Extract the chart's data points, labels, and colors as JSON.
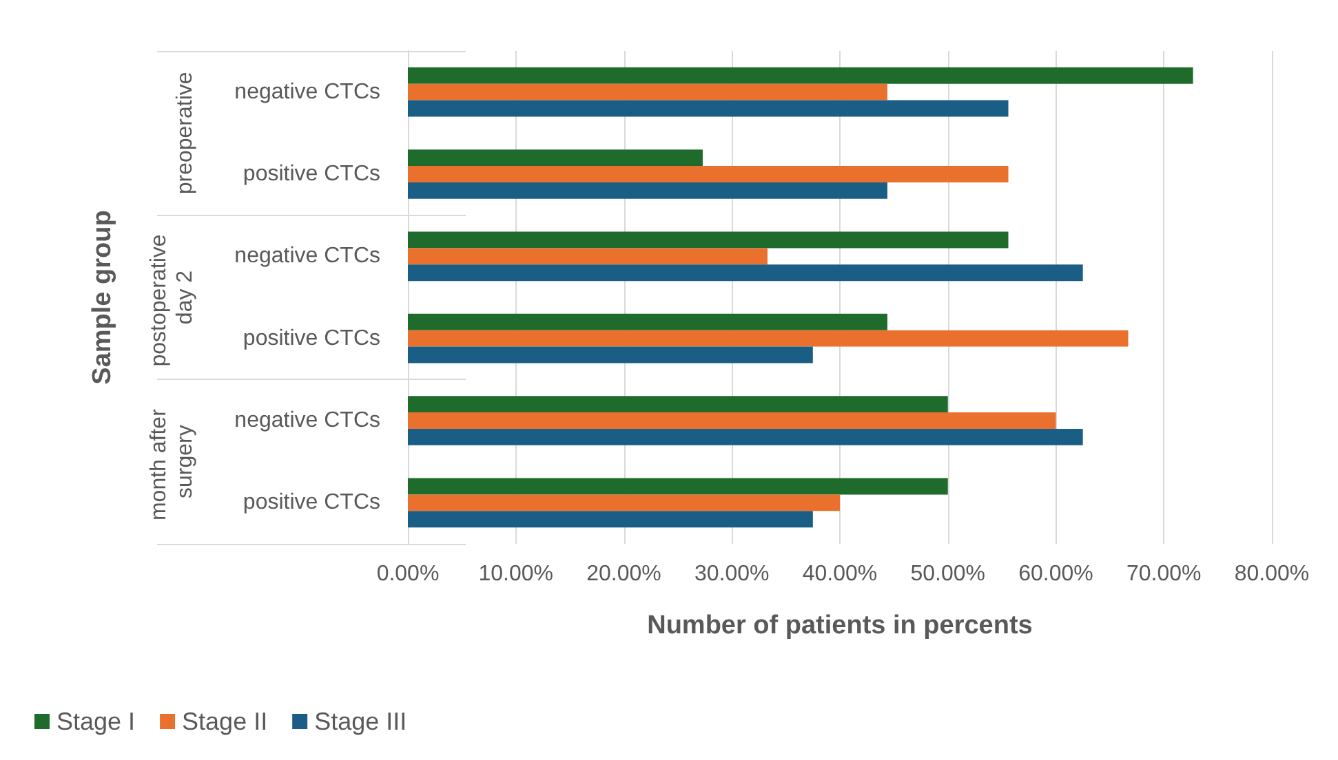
{
  "chart_data": {
    "type": "bar",
    "orientation": "horizontal",
    "xlabel": "Number of patients in percents",
    "ylabel": "Sample group",
    "categories": [
      "negative CTCs",
      "positive CTCs",
      "negative CTCs",
      "positive CTCs",
      "negative CTCs",
      "positive CTCs"
    ],
    "annotations": [
      "preoperative",
      "postoperative day 2",
      "month after surgery"
    ],
    "series": [
      {
        "name": "Stage I",
        "color": "#1e6b2b",
        "values": [
          72.7,
          27.3,
          55.6,
          44.4,
          50,
          50
        ]
      },
      {
        "name": "Stage II",
        "color": "#e9712d",
        "values": [
          44.4,
          55.6,
          33.3,
          66.7,
          60,
          40
        ]
      },
      {
        "name": "Stage III",
        "color": "#1b5e85",
        "values": [
          55.6,
          44.4,
          62.5,
          37.5,
          62.5,
          37.5
        ]
      }
    ],
    "xlim": [
      0,
      80
    ],
    "xticks": [
      {
        "value": 0,
        "label": "0.00%"
      },
      {
        "value": 10,
        "label": "10.00%"
      },
      {
        "value": 20,
        "label": "20.00%"
      },
      {
        "value": 30,
        "label": "30.00%"
      },
      {
        "value": 40,
        "label": "40.00%"
      },
      {
        "value": 50,
        "label": "50.00%"
      },
      {
        "value": 60,
        "label": "60.00%"
      },
      {
        "value": 70,
        "label": "70.00%"
      },
      {
        "value": 80,
        "label": "80.00%"
      }
    ],
    "grid": "x",
    "legend": "bottom left"
  }
}
